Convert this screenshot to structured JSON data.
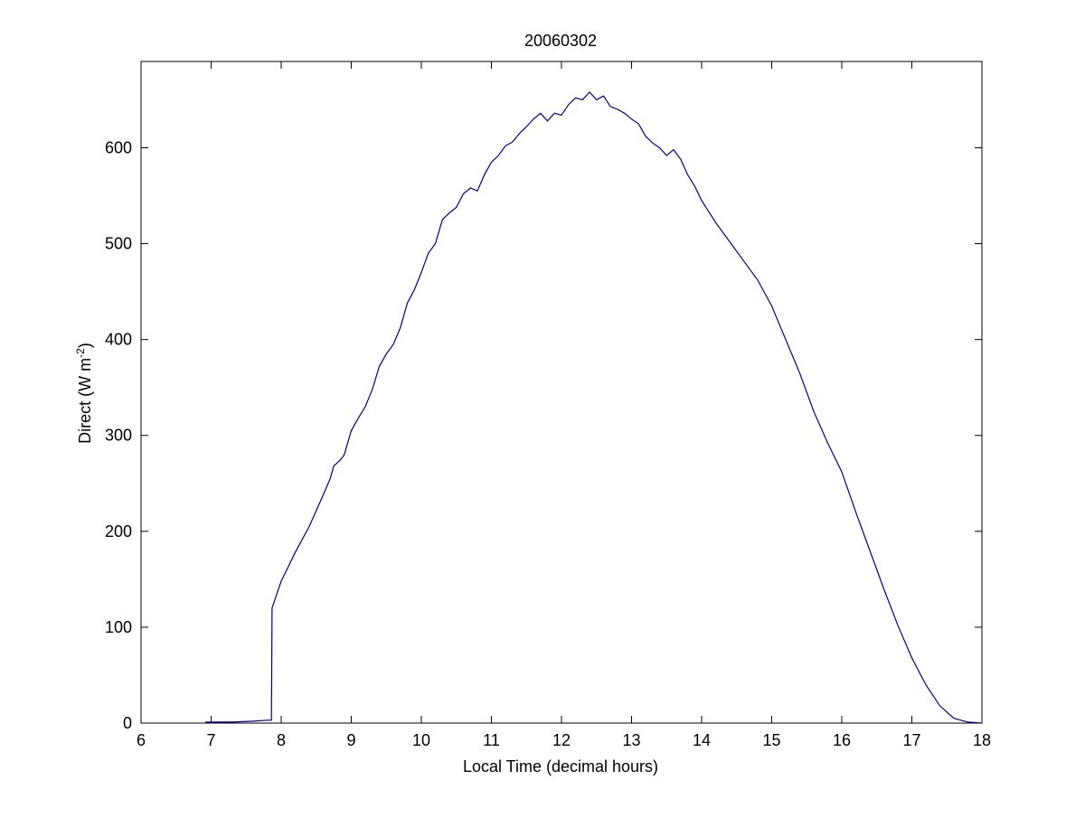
{
  "chart_data": {
    "type": "line",
    "title": "20060302",
    "xlabel": "Local Time (decimal hours)",
    "ylabel_main": "Direct (W m",
    "ylabel_sup": "-2",
    "ylabel_close": ")",
    "xlim": [
      6,
      18
    ],
    "ylim": [
      0,
      690
    ],
    "xticks": [
      6,
      7,
      8,
      9,
      10,
      11,
      12,
      13,
      14,
      15,
      16,
      17,
      18
    ],
    "yticks": [
      0,
      100,
      200,
      300,
      400,
      500,
      600
    ],
    "grid": false,
    "legend": "none",
    "line_color": "#00008b",
    "series": [
      {
        "x": [
          6.92,
          7.3,
          7.6,
          7.8,
          7.86,
          7.87,
          8.0,
          8.2,
          8.4,
          8.6,
          8.7,
          8.75,
          8.85,
          8.9,
          9.0,
          9.1,
          9.2,
          9.3,
          9.4,
          9.5,
          9.6,
          9.7,
          9.8,
          9.9,
          10.0,
          10.1,
          10.2,
          10.3,
          10.4,
          10.5,
          10.6,
          10.7,
          10.8,
          10.9,
          11.0,
          11.1,
          11.2,
          11.3,
          11.4,
          11.5,
          11.6,
          11.7,
          11.8,
          11.9,
          12.0,
          12.1,
          12.2,
          12.3,
          12.4,
          12.5,
          12.6,
          12.7,
          12.8,
          12.9,
          13.0,
          13.1,
          13.2,
          13.3,
          13.4,
          13.5,
          13.6,
          13.7,
          13.8,
          13.9,
          14.0,
          14.2,
          14.4,
          14.6,
          14.8,
          15.0,
          15.2,
          15.4,
          15.6,
          15.8,
          16.0,
          16.2,
          16.4,
          16.6,
          16.8,
          17.0,
          17.2,
          17.4,
          17.6,
          17.8,
          18.0
        ],
        "y": [
          1,
          1,
          2,
          3,
          3,
          120,
          148,
          178,
          205,
          238,
          255,
          268,
          275,
          280,
          305,
          318,
          330,
          348,
          372,
          385,
          395,
          412,
          438,
          452,
          470,
          490,
          500,
          525,
          532,
          538,
          552,
          558,
          555,
          572,
          585,
          592,
          602,
          606,
          615,
          622,
          630,
          636,
          628,
          636,
          634,
          645,
          652,
          650,
          658,
          650,
          654,
          643,
          640,
          636,
          630,
          625,
          612,
          605,
          600,
          592,
          598,
          588,
          572,
          560,
          545,
          522,
          502,
          482,
          462,
          435,
          400,
          365,
          325,
          292,
          262,
          220,
          180,
          140,
          102,
          68,
          40,
          18,
          5,
          1,
          0
        ]
      }
    ]
  }
}
